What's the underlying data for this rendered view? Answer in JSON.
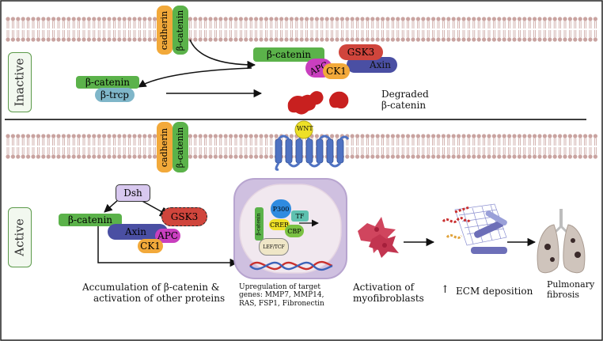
{
  "panels": {
    "inactive_label": "Inactive",
    "active_label": "Active"
  },
  "inactive": {
    "cadherin": "cadherin",
    "beta_catenin_membrane": "β-catenin",
    "complex": {
      "beta_catenin": "β-catenin",
      "gsk3": "GSK3",
      "apc": "APC",
      "ck1": "CK1",
      "axin": "Axin"
    },
    "beta_catenin_free": "β-catenin",
    "btrcp": "β-trcp",
    "degraded_line1": "Degraded",
    "degraded_line2": "β-catenin"
  },
  "active": {
    "cadherin": "cadherin",
    "beta_catenin_membrane": "β-catenin",
    "wnt": "WNT",
    "dsh": "Dsh",
    "gsk3": "GSK3",
    "beta_catenin": "β-catenin",
    "axin": "Axin",
    "apc": "APC",
    "ck1": "CK1",
    "nucleus": {
      "p300": "P300",
      "tf": "TF",
      "creb": "CREB",
      "cbp": "CBP",
      "lef_tcf": "LEF/TCF",
      "beta_catenin_vertical": "β-catenin"
    },
    "captions": {
      "accumulation_line1": "Accumulation of β-catenin &",
      "accumulation_line2": "activation of other proteins",
      "upregulation_line1": "Upregulation of target",
      "upregulation_line2": "genes: MMP7, MMP14,",
      "upregulation_line3": "RAS, FSP1, Fibronectin",
      "myofib_line1": "Activation of",
      "myofib_line2": "myofibroblasts",
      "ecm_arrow": "↑",
      "ecm": "ECM deposition",
      "fibrosis_line1": "Pulmonary",
      "fibrosis_line2": "fibrosis"
    }
  },
  "colors": {
    "green": "#5bb24a",
    "purple": "#c93fbf",
    "red": "#d0453c",
    "orange": "#f2a93a",
    "navy": "#4a4fa3",
    "membrane": "#c9a3a0",
    "receptor": "#4f72c2",
    "wnt": "#ede027",
    "nucleus": "#d6c7e6"
  },
  "icons": [
    "membrane-icon",
    "receptor-icon",
    "myofibroblast-icon",
    "ecm-fiber-icon",
    "lung-icon",
    "dna-icon",
    "degraded-protein-icon"
  ]
}
